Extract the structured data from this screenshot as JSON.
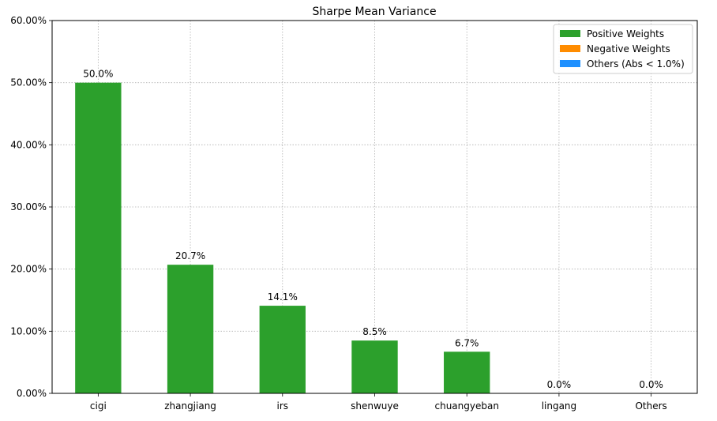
{
  "chart_data": {
    "type": "bar",
    "title": "Sharpe Mean Variance",
    "xlabel": "",
    "ylabel": "",
    "categories": [
      "cigi",
      "zhangjiang",
      "irs",
      "shenwuye",
      "chuangyeban",
      "lingang",
      "Others"
    ],
    "values": [
      50.0,
      20.7,
      14.1,
      8.5,
      6.7,
      0.0,
      0.0
    ],
    "value_labels": [
      "50.0%",
      "20.7%",
      "14.1%",
      "8.5%",
      "6.7%",
      "0.0%",
      "0.0%"
    ],
    "ylim": [
      0,
      60
    ],
    "yticks": [
      0,
      10,
      20,
      30,
      40,
      50,
      60
    ],
    "ytick_labels": [
      "0.00%",
      "10.00%",
      "20.00%",
      "30.00%",
      "40.00%",
      "50.00%",
      "60.00%"
    ],
    "grid": true,
    "legend_position": "top-right",
    "legend": [
      {
        "label": "Positive Weights",
        "color": "#2ca02c"
      },
      {
        "label": "Negative Weights",
        "color": "#ff8c00"
      },
      {
        "label": "Others (Abs < 1.0%)",
        "color": "#1e90ff"
      }
    ],
    "bar_color": "#2ca02c"
  }
}
